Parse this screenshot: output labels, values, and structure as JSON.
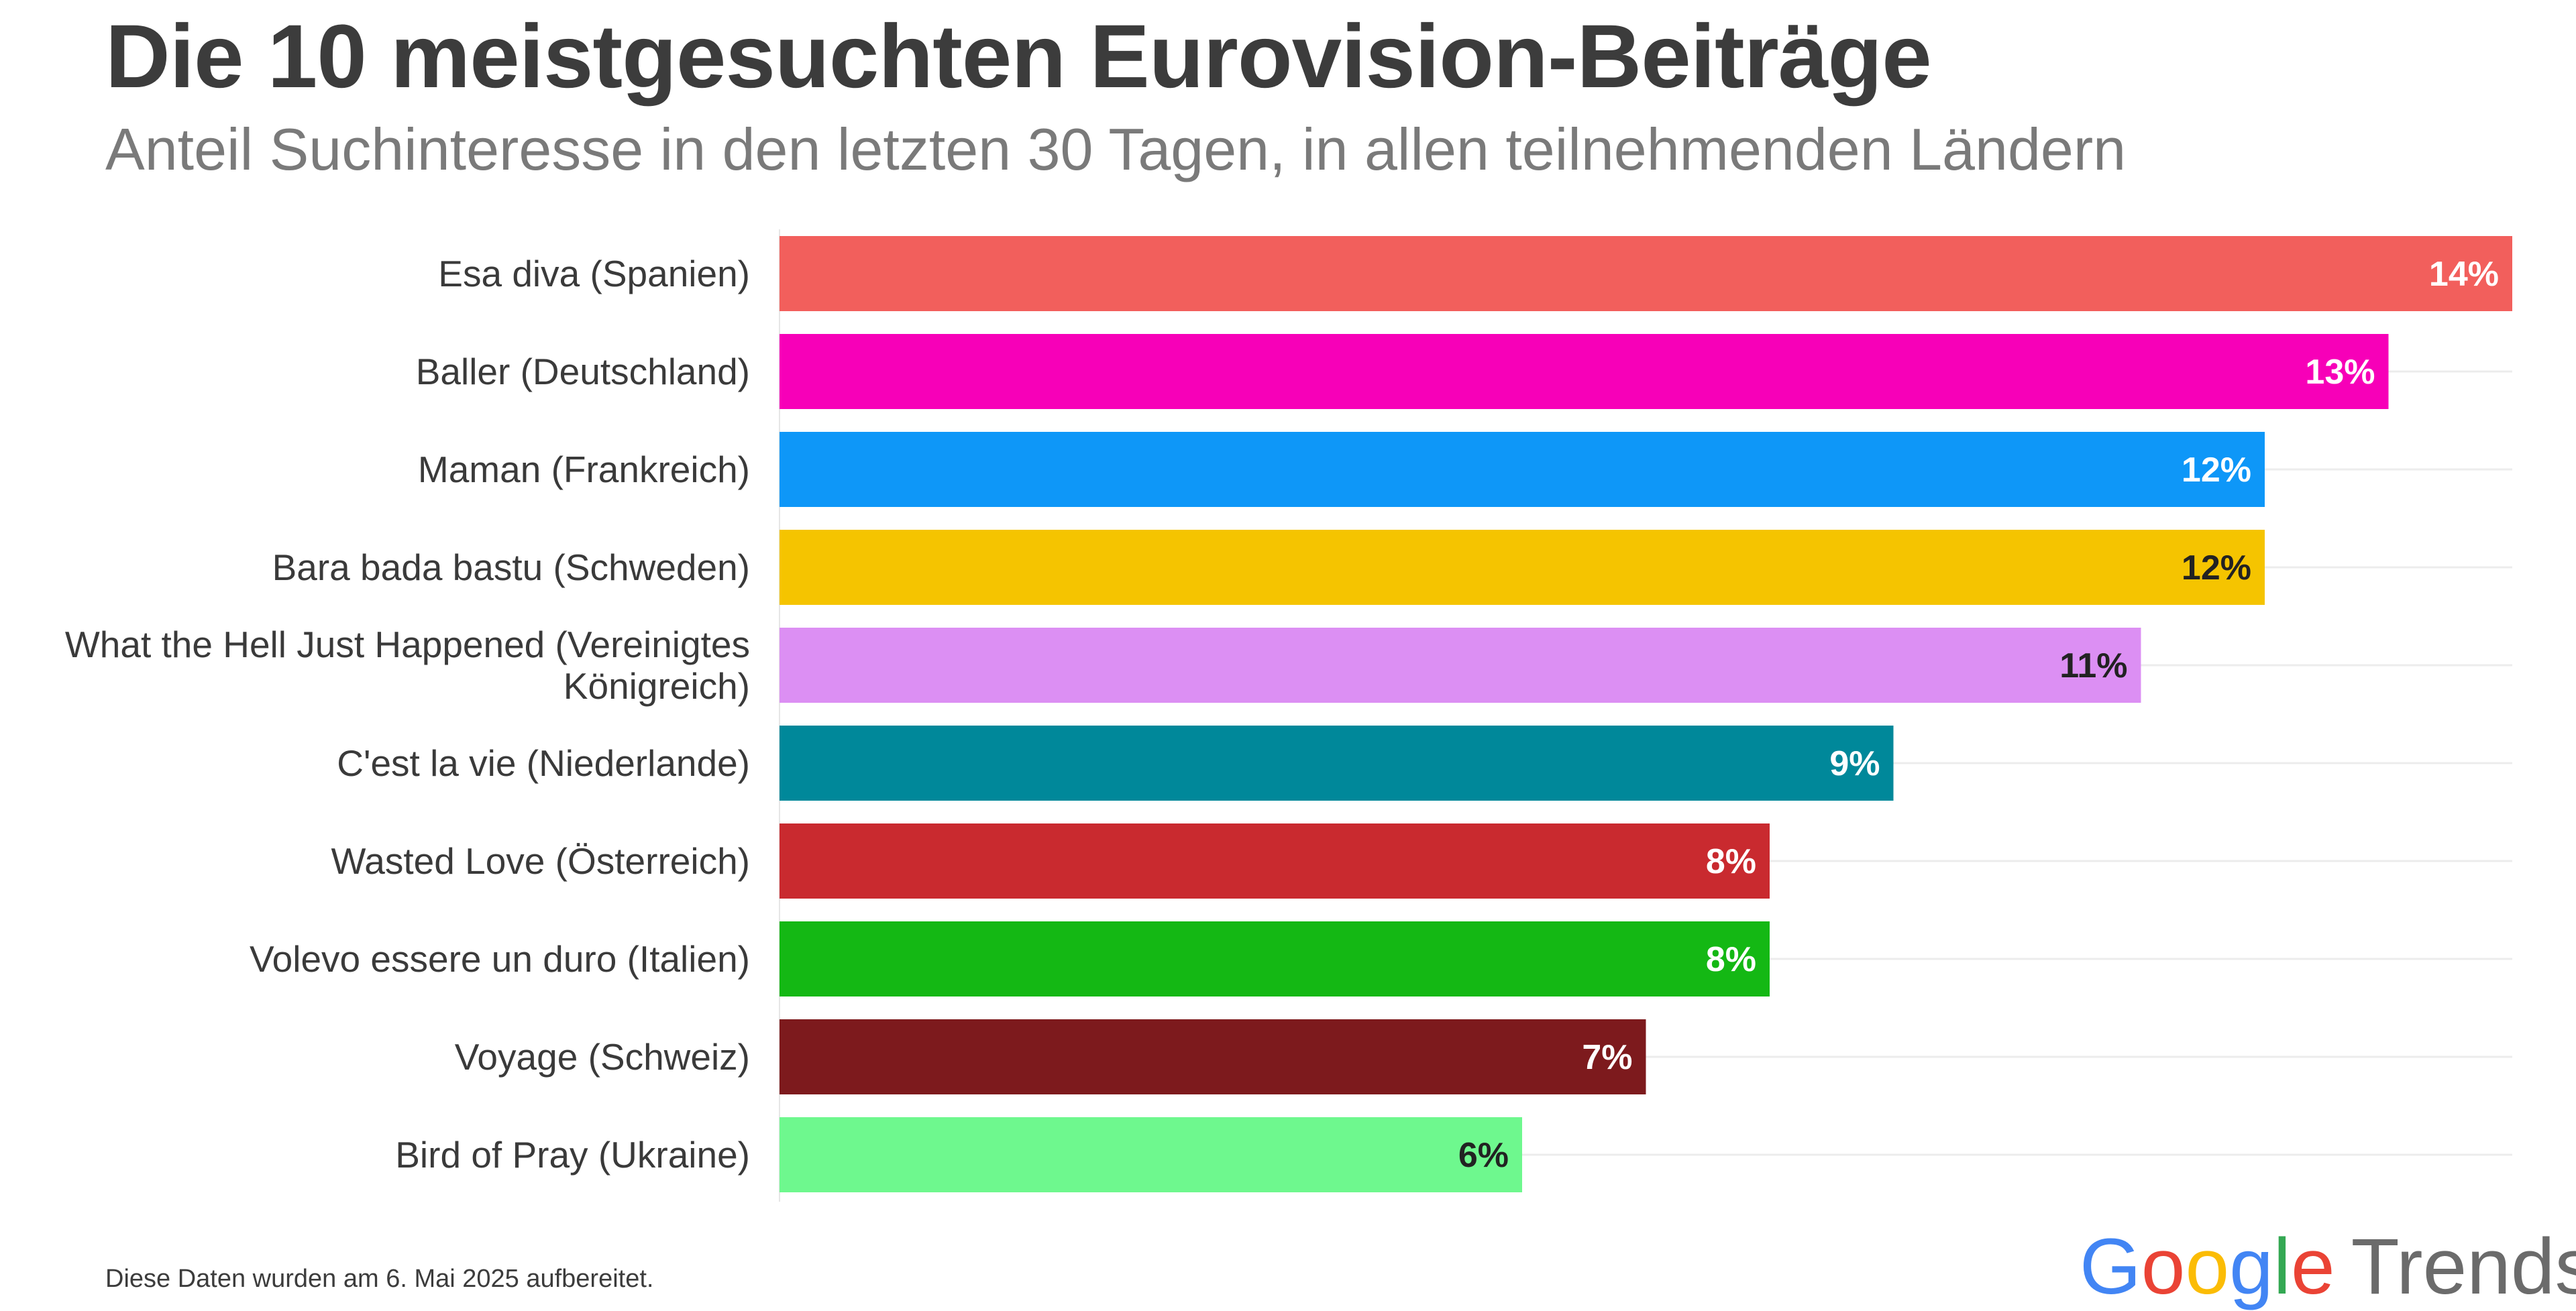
{
  "header": {
    "title": "Die 10 meistgesuchten Eurovision-Beiträge",
    "subtitle": "Anteil Suchinteresse in den letzten 30 Tagen, in allen teilnehmenden Ländern"
  },
  "footer": {
    "note": "Diese Daten wurden am 6. Mai 2025 aufbereitet.",
    "logo_text": "Google",
    "logo_suffix": "Trends"
  },
  "chart_data": {
    "type": "bar",
    "orientation": "horizontal",
    "title": "Die 10 meistgesuchten Eurovision-Beiträge",
    "subtitle": "Anteil Suchinteresse in den letzten 30 Tagen, in allen teilnehmenden Ländern",
    "xlabel": "",
    "ylabel": "",
    "xlim": [
      0,
      14
    ],
    "grid": true,
    "legend": "none",
    "categories": [
      [
        "Esa diva (Spanien)"
      ],
      [
        "Baller (Deutschland)"
      ],
      [
        "Maman (Frankreich)"
      ],
      [
        "Bara bada bastu (Schweden)"
      ],
      [
        "What the Hell Just Happened (Vereinigtes",
        "Königreich)"
      ],
      [
        "C'est la vie (Niederlande)"
      ],
      [
        "Wasted Love (Österreich)"
      ],
      [
        "Volevo essere un duro (Italien)"
      ],
      [
        "Voyage (Schweiz)"
      ],
      [
        "Bird of Pray (Ukraine)"
      ]
    ],
    "values": [
      14,
      13,
      12,
      12,
      11,
      9,
      8,
      8,
      7,
      6
    ],
    "data_labels": [
      "14%",
      "13%",
      "12%",
      "12%",
      "11%",
      "9%",
      "8%",
      "8%",
      "7%",
      "6%"
    ],
    "colors": [
      "#F25F5C",
      "#F700B8",
      "#0E97F8",
      "#F5C400",
      "#DC8FF3",
      "#00889A",
      "#C92A2F",
      "#14B814",
      "#7D1A1D",
      "#6EF88E"
    ],
    "label_colors": [
      "#ffffff",
      "#ffffff",
      "#ffffff",
      "#222222",
      "#222222",
      "#ffffff",
      "#ffffff",
      "#ffffff",
      "#ffffff",
      "#222222"
    ]
  }
}
